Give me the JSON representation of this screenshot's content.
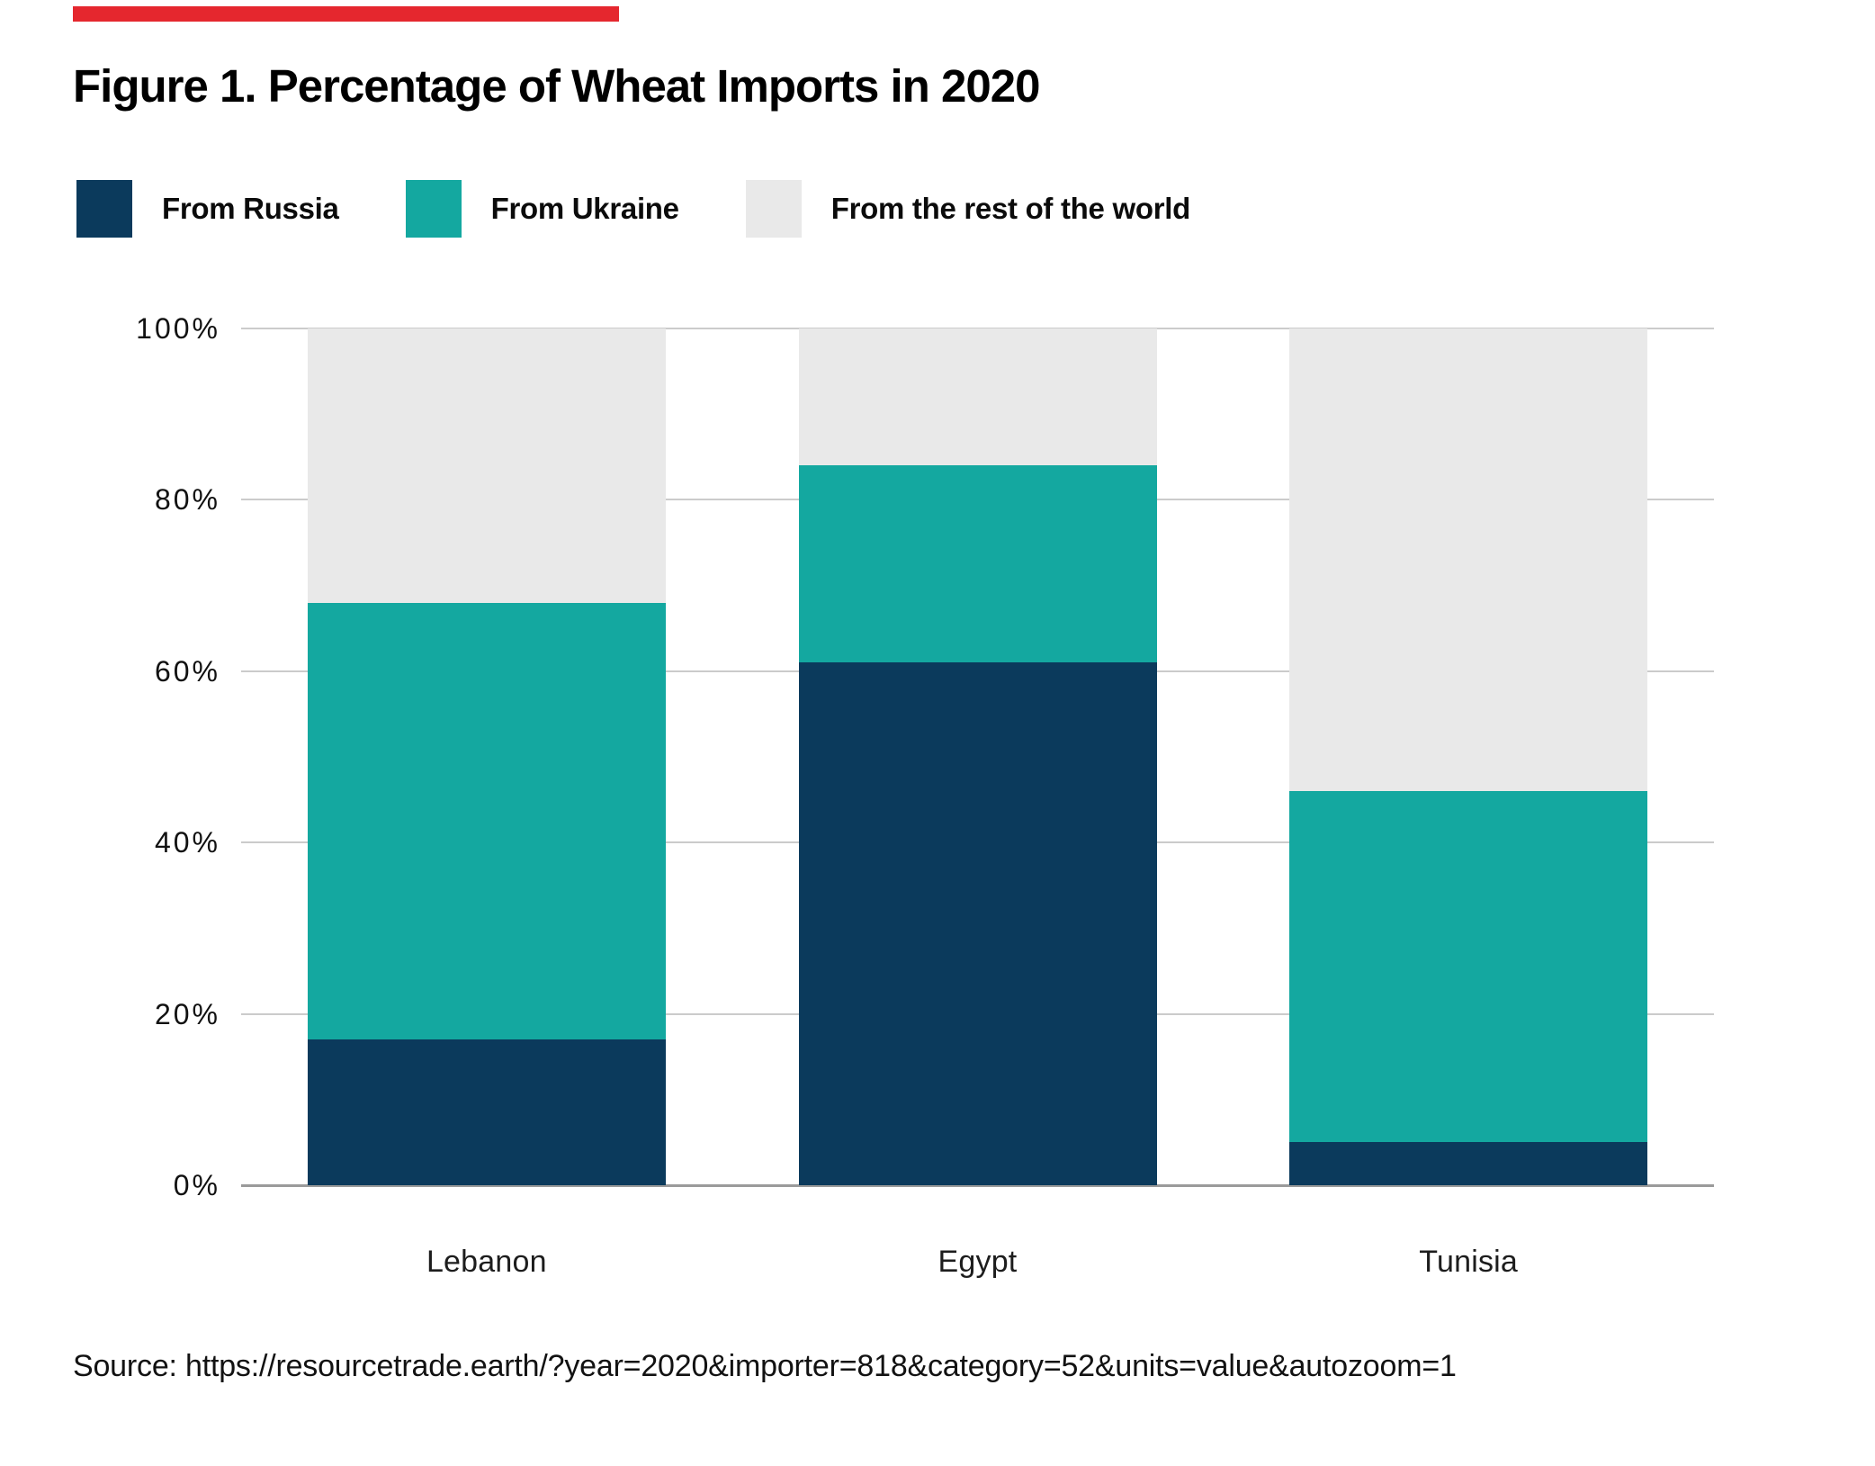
{
  "accent_bar": {
    "color": "#e5272e"
  },
  "title": "Figure 1. Percentage of Wheat Imports in 2020",
  "legend": [
    {
      "label": "From Russia",
      "color": "#0b3a5c"
    },
    {
      "label": "From Ukraine",
      "color": "#14a8a0"
    },
    {
      "label": "From the rest of the world",
      "color": "#e9e9e9"
    }
  ],
  "chart_data": {
    "type": "bar",
    "stacked": true,
    "title": "Figure 1. Percentage of Wheat Imports in 2020",
    "categories": [
      "Lebanon",
      "Egypt",
      "Tunisia"
    ],
    "series": [
      {
        "name": "From Russia",
        "color": "#0b3a5c",
        "values": [
          17,
          61,
          5
        ]
      },
      {
        "name": "From Ukraine",
        "color": "#14a8a0",
        "values": [
          51,
          23,
          41
        ]
      },
      {
        "name": "From the rest of the world",
        "color": "#e9e9e9",
        "values": [
          32,
          16,
          54
        ]
      }
    ],
    "xlabel": "",
    "ylabel": "",
    "ylim": [
      0,
      100
    ],
    "yticks": [
      "0%",
      "20%",
      "40%",
      "60%",
      "80%",
      "100%"
    ],
    "grid": true,
    "grid_color": "#cbcbcb",
    "axis_color": "#9a9a9a",
    "legend_position": "top"
  },
  "source": "Source: https://resourcetrade.earth/?year=2020&importer=818&category=52&units=value&autozoom=1"
}
